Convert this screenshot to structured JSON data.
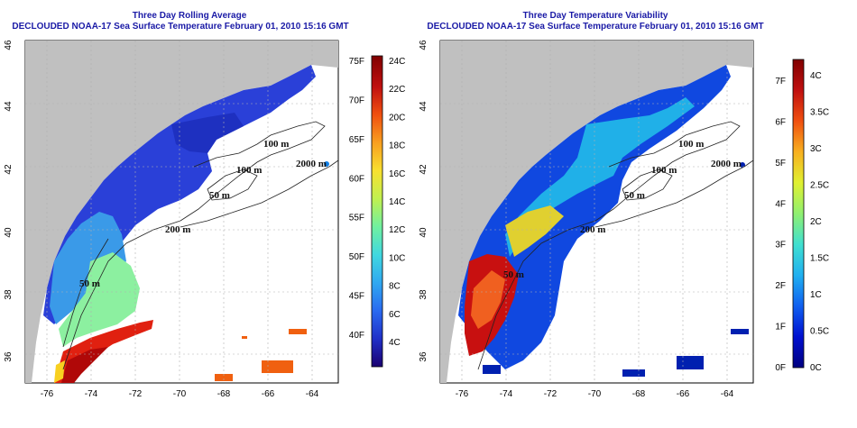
{
  "left_map": {
    "title": "Three Day Rolling Average",
    "subtitle": "DECLOUDED NOAA-17 Sea Surface Temperature February 01, 2010 15:16 GMT",
    "colorbar": {
      "f_labels": [
        "75F",
        "70F",
        "65F",
        "60F",
        "55F",
        "50F",
        "45F",
        "40F"
      ],
      "c_labels": [
        "24C",
        "22C",
        "20C",
        "18C",
        "16C",
        "14C",
        "12C",
        "10C",
        "8C",
        "6C",
        "4C"
      ],
      "colors": [
        "#1a0070",
        "#2030c8",
        "#2a6af0",
        "#30a8f0",
        "#40d8e0",
        "#70f0a0",
        "#c0f050",
        "#f8e030",
        "#f8a020",
        "#f05010",
        "#c01010",
        "#800000"
      ]
    },
    "depth_labels": [
      "100 m",
      "100 m",
      "2000 m",
      "50 m",
      "200 m",
      "50 m"
    ]
  },
  "right_map": {
    "title": "Three Day Temperature Variability",
    "subtitle": "DECLOUDED NOAA-17 Sea Surface Temperature February 01, 2010 15:16 GMT",
    "colorbar": {
      "f_labels": [
        "7F",
        "6F",
        "5F",
        "4F",
        "3F",
        "2F",
        "1F",
        "0F"
      ],
      "c_labels": [
        "4C",
        "3.5C",
        "3C",
        "2.5C",
        "2C",
        "1.5C",
        "1C",
        "0.5C",
        "0C"
      ],
      "colors": [
        "#000080",
        "#0010d0",
        "#1060f0",
        "#20b0f0",
        "#40e0d0",
        "#90f070",
        "#e0f030",
        "#f8b020",
        "#f05010",
        "#c01010",
        "#800000"
      ]
    },
    "depth_labels": [
      "100 m",
      "100 m",
      "2000 m",
      "50 m",
      "200 m",
      "50 m"
    ]
  },
  "axes": {
    "lon_ticks": [
      "-76",
      "-74",
      "-72",
      "-70",
      "-68",
      "-66",
      "-64"
    ],
    "lat_ticks": [
      "46",
      "44",
      "42",
      "40",
      "38",
      "36"
    ]
  },
  "colors": {
    "land": "#c0c0c0",
    "title": "#1a1aa6"
  }
}
